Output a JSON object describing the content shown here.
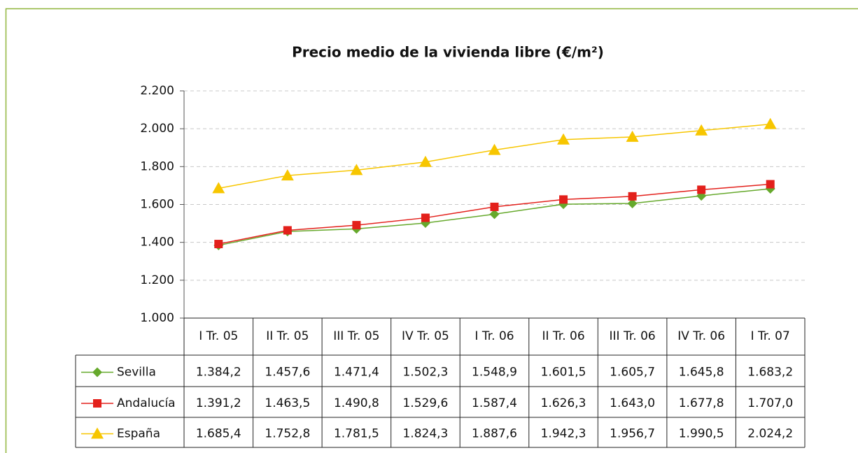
{
  "chart_data": {
    "type": "line",
    "title": "Precio medio de la vivienda libre (€/m²)",
    "categories": [
      "I Tr. 05",
      "II Tr. 05",
      "III Tr. 05",
      "IV Tr. 05",
      "I Tr. 06",
      "II Tr. 06",
      "III Tr. 06",
      "IV Tr. 06",
      "I Tr. 07"
    ],
    "series": [
      {
        "name": "Sevilla",
        "color": "#66a92c",
        "marker": "diamond",
        "values": [
          1384.2,
          1457.6,
          1471.4,
          1502.3,
          1548.9,
          1601.5,
          1605.7,
          1645.8,
          1683.2
        ],
        "value_labels": [
          "1.384,2",
          "1.457,6",
          "1.471,4",
          "1.502,3",
          "1.548,9",
          "1.601,5",
          "1.605,7",
          "1.645,8",
          "1.683,2"
        ]
      },
      {
        "name": "Andalucía",
        "color": "#e3201b",
        "marker": "square",
        "values": [
          1391.2,
          1463.5,
          1490.8,
          1529.6,
          1587.4,
          1626.3,
          1643.0,
          1677.8,
          1707.0
        ],
        "value_labels": [
          "1.391,2",
          "1.463,5",
          "1.490,8",
          "1.529,6",
          "1.587,4",
          "1.626,3",
          "1.643,0",
          "1.677,8",
          "1.707,0"
        ]
      },
      {
        "name": "España",
        "color": "#f7c600",
        "marker": "triangle",
        "values": [
          1685.4,
          1752.8,
          1781.5,
          1824.3,
          1887.6,
          1942.3,
          1956.7,
          1990.5,
          2024.2
        ],
        "value_labels": [
          "1.685,4",
          "1.752,8",
          "1.781,5",
          "1.824,3",
          "1.887,6",
          "1.942,3",
          "1.956,7",
          "1.990,5",
          "2.024,2"
        ]
      }
    ],
    "ylim": [
      1000,
      2200
    ],
    "yticks": [
      {
        "value": 1000,
        "label": "1.000"
      },
      {
        "value": 1200,
        "label": "1.200"
      },
      {
        "value": 1400,
        "label": "1.400"
      },
      {
        "value": 1600,
        "label": "1.600"
      },
      {
        "value": 1800,
        "label": "1.800"
      },
      {
        "value": 2000,
        "label": "2.000"
      },
      {
        "value": 2200,
        "label": "2.200"
      }
    ],
    "grid": true
  }
}
